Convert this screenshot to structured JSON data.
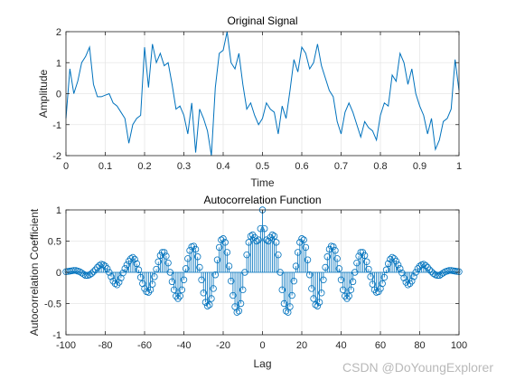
{
  "watermark": "CSDN @DoYoungExplorer",
  "colors": {
    "series": "#0072BD",
    "axis": "#262626",
    "grid": "#e6e6e6"
  },
  "chart_data": [
    {
      "type": "line",
      "title": "Original Signal",
      "xlabel": "Time",
      "ylabel": "Amplitude",
      "xlim": [
        0,
        1
      ],
      "ylim": [
        -2,
        2
      ],
      "xticks": [
        0,
        0.1,
        0.2,
        0.3,
        0.4,
        0.5,
        0.6,
        0.7,
        0.8,
        0.9,
        1
      ],
      "xtick_labels": [
        "0",
        "0.1",
        "0.2",
        "0.3",
        "0.4",
        "0.5",
        "0.6",
        "0.7",
        "0.8",
        "0.9",
        "1"
      ],
      "yticks": [
        -2,
        -1,
        0,
        1,
        2
      ],
      "ytick_labels": [
        "-2",
        "-1",
        "0",
        "1",
        "2"
      ],
      "grid": true,
      "series": [
        {
          "x": [
            0,
            0.01,
            0.02,
            0.03,
            0.04,
            0.05,
            0.06,
            0.07,
            0.08,
            0.09,
            0.1,
            0.11,
            0.12,
            0.13,
            0.14,
            0.15,
            0.16,
            0.17,
            0.18,
            0.19,
            0.2,
            0.21,
            0.22,
            0.23,
            0.24,
            0.25,
            0.26,
            0.27,
            0.28,
            0.29,
            0.3,
            0.31,
            0.32,
            0.33,
            0.34,
            0.35,
            0.36,
            0.37,
            0.38,
            0.39,
            0.4,
            0.41,
            0.42,
            0.43,
            0.44,
            0.45,
            0.46,
            0.47,
            0.48,
            0.49,
            0.5,
            0.51,
            0.52,
            0.53,
            0.54,
            0.55,
            0.56,
            0.57,
            0.58,
            0.59,
            0.6,
            0.61,
            0.62,
            0.63,
            0.64,
            0.65,
            0.66,
            0.67,
            0.68,
            0.69,
            0.7,
            0.71,
            0.72,
            0.73,
            0.74,
            0.75,
            0.76,
            0.77,
            0.78,
            0.79,
            0.8,
            0.81,
            0.82,
            0.83,
            0.84,
            0.85,
            0.86,
            0.87,
            0.88,
            0.89,
            0.9,
            0.91,
            0.92,
            0.93,
            0.94,
            0.95,
            0.96,
            0.97,
            0.98,
            0.99,
            1
          ],
          "y": [
            -0.8,
            0.8,
            0.0,
            0.4,
            1.0,
            1.2,
            1.5,
            0.3,
            -0.1,
            -0.1,
            -0.05,
            0.0,
            -0.3,
            -0.4,
            -0.6,
            -0.8,
            -1.6,
            -1.0,
            -0.8,
            -0.7,
            1.5,
            0.2,
            1.6,
            1.0,
            1.3,
            0.9,
            1.0,
            0.3,
            -0.5,
            -0.4,
            -0.7,
            -1.3,
            -0.3,
            -1.9,
            -0.5,
            -0.8,
            -1.2,
            -2.0,
            0.2,
            1.3,
            1.4,
            2.0,
            1.0,
            0.8,
            1.3,
            0.3,
            -0.5,
            -0.3,
            -0.7,
            -1.0,
            -0.8,
            -0.3,
            -0.5,
            -0.6,
            -1.3,
            -0.4,
            -0.8,
            0.1,
            1.1,
            0.7,
            1.5,
            1.3,
            0.8,
            1.0,
            1.6,
            0.9,
            0.5,
            0.1,
            -0.1,
            -0.9,
            -1.3,
            -0.6,
            -0.3,
            -0.6,
            -1.0,
            -1.4,
            -0.9,
            -1.1,
            -1.2,
            -1.5,
            -0.7,
            -0.3,
            -0.4,
            0.6,
            0.4,
            1.3,
            1.0,
            0.3,
            0.8,
            0.0,
            -0.4,
            -0.7,
            -1.3,
            -0.8,
            -1.8,
            -1.5,
            -0.9,
            -0.8,
            -0.5,
            1.1,
            0.1
          ]
        }
      ]
    },
    {
      "type": "stem",
      "title": "Autocorrelation Function",
      "xlabel": "Lag",
      "ylabel": "Autocorrelation Coefficient",
      "xlim": [
        -100,
        100
      ],
      "ylim": [
        -1,
        1
      ],
      "xticks": [
        -100,
        -80,
        -60,
        -40,
        -20,
        0,
        20,
        40,
        60,
        80,
        100
      ],
      "xtick_labels": [
        "-100",
        "-80",
        "-60",
        "-40",
        "-20",
        "0",
        "20",
        "40",
        "60",
        "80",
        "100"
      ],
      "yticks": [
        -1,
        -0.5,
        0,
        0.5,
        1
      ],
      "ytick_labels": [
        "-1",
        "-0.5",
        "0",
        "0.5",
        "1"
      ],
      "grid": true,
      "series": [
        {
          "x_start": -100,
          "x_step": 1,
          "y": [
            0.01,
            0.015,
            0.02,
            0.025,
            0.03,
            0.03,
            0.02,
            0.01,
            -0.01,
            -0.03,
            -0.05,
            -0.05,
            -0.04,
            -0.02,
            0.01,
            0.04,
            0.08,
            0.11,
            0.13,
            0.12,
            0.1,
            0.06,
            0.0,
            -0.07,
            -0.14,
            -0.18,
            -0.2,
            -0.16,
            -0.09,
            -0.01,
            0.06,
            0.12,
            0.18,
            0.22,
            0.24,
            0.21,
            0.14,
            0.04,
            -0.08,
            -0.18,
            -0.26,
            -0.31,
            -0.32,
            -0.28,
            -0.19,
            -0.07,
            0.05,
            0.17,
            0.27,
            0.32,
            0.32,
            0.26,
            0.15,
            0.0,
            -0.15,
            -0.28,
            -0.38,
            -0.42,
            -0.38,
            -0.28,
            -0.12,
            0.06,
            0.22,
            0.35,
            0.41,
            0.42,
            0.37,
            0.25,
            0.08,
            -0.12,
            -0.33,
            -0.48,
            -0.54,
            -0.52,
            -0.42,
            -0.26,
            -0.04,
            0.2,
            0.4,
            0.52,
            0.54,
            0.48,
            0.32,
            0.1,
            -0.14,
            -0.37,
            -0.55,
            -0.64,
            -0.62,
            -0.5,
            -0.28,
            0.0,
            0.28,
            0.48,
            0.58,
            0.6,
            0.56,
            0.5,
            0.52,
            0.7,
            1.0,
            0.7,
            0.52,
            0.5,
            0.56,
            0.6,
            0.58,
            0.48,
            0.28,
            0.0,
            -0.28,
            -0.5,
            -0.62,
            -0.64,
            -0.55,
            -0.37,
            -0.14,
            0.1,
            0.32,
            0.48,
            0.54,
            0.52,
            0.4,
            0.2,
            -0.04,
            -0.26,
            -0.42,
            -0.52,
            -0.54,
            -0.48,
            -0.33,
            -0.12,
            0.08,
            0.25,
            0.37,
            0.42,
            0.41,
            0.35,
            0.22,
            0.06,
            -0.12,
            -0.28,
            -0.38,
            -0.42,
            -0.38,
            -0.28,
            -0.15,
            0.0,
            0.15,
            0.26,
            0.32,
            0.32,
            0.27,
            0.17,
            0.05,
            -0.07,
            -0.19,
            -0.28,
            -0.32,
            -0.31,
            -0.26,
            -0.18,
            -0.08,
            0.04,
            0.14,
            0.21,
            0.24,
            0.22,
            0.18,
            0.12,
            0.06,
            -0.01,
            -0.09,
            -0.16,
            -0.2,
            -0.18,
            -0.14,
            -0.07,
            0.0,
            0.06,
            0.1,
            0.12,
            0.13,
            0.11,
            0.08,
            0.04,
            0.01,
            -0.02,
            -0.04,
            -0.05,
            -0.05,
            -0.03,
            -0.01,
            0.01,
            0.02,
            0.03,
            0.03,
            0.025,
            0.02,
            0.015,
            0.01
          ]
        }
      ]
    }
  ]
}
